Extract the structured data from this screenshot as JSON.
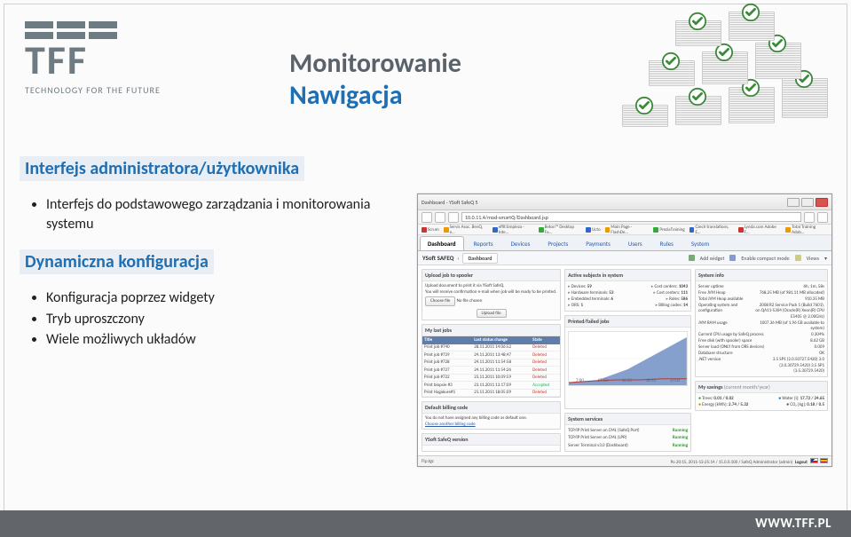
{
  "logo": {
    "tagline": "TECHNOLOGY FOR THE FUTURE",
    "letters": "TFF"
  },
  "title": {
    "line1": "Monitorowanie",
    "line2": "Nawigacja"
  },
  "sections": {
    "h1": "Interfejs administratora/użytkownika",
    "b1": "Interfejs do podstawowego zarządzania i monitorowania systemu",
    "h2": "Dynamiczna konfiguracja",
    "b2a": "Konfiguracja poprzez widgety",
    "b2b": "Tryb uproszczony",
    "b2c": "Wiele możliwych układów"
  },
  "footer": {
    "url": "WWW.TFF.PL"
  },
  "shot": {
    "window_title": "Dashboard - YSoft SafeQ 5",
    "url": "10.0.11.4/mod-smartQ/Dashboard.jsp",
    "bookmarks": [
      "Scrum",
      "Servis Asoc. BenQ, e…",
      "effit1impleza - Inte…",
      "Beton™ Desktop Fo…",
      "Ucto",
      "Main Page - FlashDe…",
      "PreziaTraining",
      "Czech translations, E…",
      "Lynda.com Adobe F…",
      "Total Training Adob…"
    ],
    "tabs": [
      "Dashboard",
      "Reports",
      "Devices",
      "Projects",
      "Payments",
      "Users",
      "Rules",
      "System"
    ],
    "product": "YSoft SAFEQ",
    "breadcrumb": "Dashboard",
    "widgets": {
      "add": "Add widget",
      "compact": "Enable compact mode",
      "views": "Views"
    },
    "upload": {
      "title": "Upload job to spooler",
      "desc1": "Upload document to print it via YSoft SafeQ.",
      "desc2": "You will receive confirmation e-mail when job will be ready to be printed.",
      "choose": "Choose file",
      "nofile": "No file chosen",
      "submit": "Upload file"
    },
    "jobs": {
      "title": "My last jobs",
      "cols": [
        "Title",
        "Last status change",
        "State"
      ],
      "rows": [
        [
          "Print job #740",
          "28.11.2011 14:06:52",
          "Deleted"
        ],
        [
          "Print job #729",
          "24.11.2011 13:48:47",
          "Deleted"
        ],
        [
          "Print job #728",
          "24.11.2011 11:54:58",
          "Deleted"
        ],
        [
          "Print job #727",
          "24.11.2011 11:54:26",
          "Deleted"
        ],
        [
          "Print job #722",
          "23.11.2011 10:09:59",
          "Deleted"
        ],
        [
          "Print biopsie #3",
          "23.11.2011 13:17:09",
          "Accepted"
        ],
        [
          "Print Hagakure#1",
          "21.11.2011 18:05:09",
          "Deleted"
        ]
      ]
    },
    "billing": {
      "title": "Default billing code",
      "text": "You do not have assigned any billing code as default one.",
      "link": "Choose another billing code"
    },
    "version": {
      "title": "YSoft SafeQ version"
    },
    "subjects": {
      "title": "Active subjects in system",
      "rows": [
        [
          "Devices:",
          "59",
          "Cost centers:",
          "1043"
        ],
        [
          "Hardware terminals:",
          "53",
          "Cost centers:",
          "111"
        ],
        [
          "Embedded terminals:",
          "6",
          "Roles:",
          "586"
        ],
        [
          "ORS:",
          "1",
          "Billing codes:",
          "14"
        ]
      ]
    },
    "chart": {
      "title": "Printed/failed jobs",
      "xticks": [
        "7:00",
        "17:50",
        "18:00",
        "18:50",
        "19:00"
      ],
      "ylabel": "Number of jobs",
      "line_color": "#b33a3a",
      "area_color": "#7996c9",
      "background": "#ffffff",
      "line_points": [
        [
          0,
          0.95
        ],
        [
          0.2,
          0.92
        ],
        [
          0.4,
          0.9
        ],
        [
          0.6,
          0.9
        ],
        [
          0.8,
          0.88
        ],
        [
          1,
          0.88
        ]
      ],
      "area_points": [
        [
          0,
          0.95
        ],
        [
          0.25,
          0.9
        ],
        [
          0.5,
          0.7
        ],
        [
          0.75,
          0.4
        ],
        [
          1,
          0.1
        ]
      ]
    },
    "services": {
      "title": "System services",
      "rows": [
        [
          "TCP/IP Print Server on CML (SafeQ Port)",
          "Running"
        ],
        [
          "TCP/IP Print Server on CML (LPR)",
          "Running"
        ],
        [
          "Server Terminal v3.0 (Dashboard)",
          "Running"
        ]
      ]
    },
    "sysinfo": {
      "title": "System info",
      "rows": [
        [
          "Server uptime",
          "6h, 1m, 58s"
        ],
        [
          "Free JVM Heap",
          "768.25 MB (of 981.11 MB allocated)"
        ],
        [
          "Total JVM Heap available",
          "910.35 MB"
        ],
        [
          "Operating system and configuration",
          "2008 R2 Service Pack 1 (Build 7601), on QA11-5304 (Oracle(R) Xeon(R) CPU E5405 @ 2.00GHz)"
        ],
        [
          "JVM RAM usage",
          "1007.36 MB (of 1.96 GB available to system)"
        ],
        [
          "Current CPU usage by SafeQ process",
          "0.304%"
        ],
        [
          "Free disk (with spooler) space",
          "8.62 GB"
        ],
        [
          "Server load (ONLY from ORS devices)",
          "0.009"
        ],
        [
          "Database structure",
          "OK"
        ],
        [
          ".NET version",
          "3.5 SP1 (2.0.50727.5420) 3.0 (3.0.30729.5420) 3.5 SP1 (3.5.30729.5420)"
        ]
      ]
    },
    "savings": {
      "title": "My savings",
      "period": "(current month/year)",
      "rows": [
        [
          "Trees:",
          "0.01 / 0.02",
          "Water [l]:",
          "17.72 / 24.65"
        ],
        [
          "Energy [kWh]:",
          "2.74 / 5.32",
          "CO₂ [kg]:",
          "0.18 / 0.5"
        ]
      ],
      "colors": {
        "tree": "#3a9a3a",
        "water": "#2d6db3",
        "energy": "#d08c00",
        "co2": "#5b5b5b"
      }
    },
    "status": {
      "left": "Ftp.tgz",
      "center": "Po 20:15, 2011-12-25:14 / 15.0.0.100 / SafeQ Administrator (admin)",
      "logout": "Logout"
    }
  }
}
